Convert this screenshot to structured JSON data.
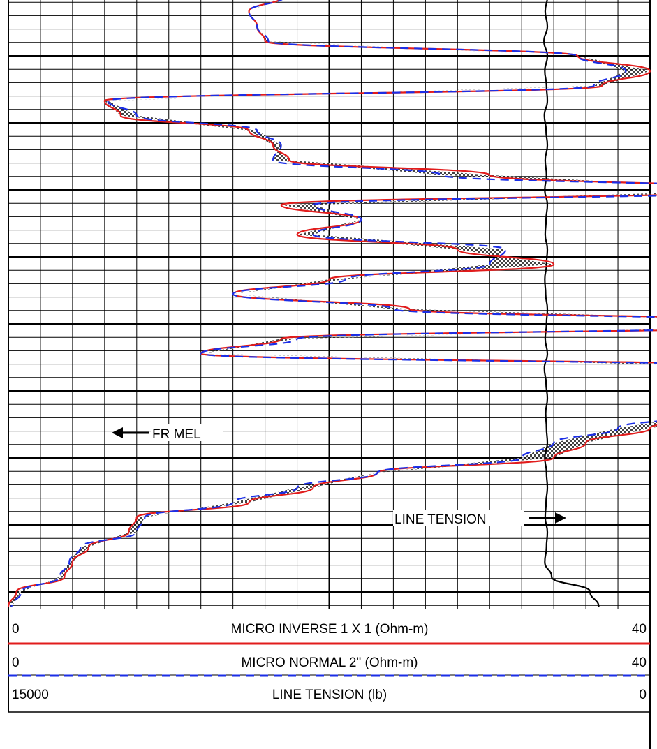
{
  "colors": {
    "grid": "#000000",
    "inverse": "#e11c1c",
    "normal": "#1b2ee6",
    "tension": "#000000",
    "fill_dark": "#222222",
    "fill_light": "#ffffff"
  },
  "annotations": {
    "fr_mel": "FR MEL",
    "line_tension": "LINE TENSION"
  },
  "header": {
    "tracks": [
      {
        "left": "0",
        "label": "MICRO INVERSE 1 X 1 (Ohm-m)",
        "right": "40",
        "line": "solid",
        "color": "#e11c1c"
      },
      {
        "left": "0",
        "label": "MICRO NORMAL 2\" (Ohm-m)",
        "right": "40",
        "line": "dashed",
        "color": "#1b2ee6"
      },
      {
        "left": "15000",
        "label": "LINE TENSION (lb)",
        "right": "0",
        "line": "none",
        "color": "#000000"
      }
    ]
  },
  "chart_data": {
    "type": "line",
    "title": "",
    "xlabel": "MICRO INVERSE 1 X 1 (Ohm-m) / MICRO NORMAL 2\" (Ohm-m)",
    "ylabel": "",
    "xlim": [
      0,
      40
    ],
    "x_minor_step": 2,
    "x_major_step": 20,
    "y_samples": 42,
    "grid": true,
    "series": [
      {
        "name": "MICRO INVERSE 1 X 1 (Ohm-m)",
        "scale": [
          0,
          40
        ],
        "style": "solid",
        "values": [
          17.1,
          15,
          15.5,
          16,
          35.5,
          40,
          37,
          6,
          7,
          15,
          16.5,
          17.5,
          30,
          47,
          17,
          22,
          18,
          28,
          34,
          20,
          14,
          25,
          55,
          17,
          12,
          54,
          58,
          52,
          47,
          40,
          36,
          34,
          23,
          19,
          15,
          8,
          7.5,
          5,
          4,
          3.5,
          0.5,
          0
        ]
      },
      {
        "name": "MICRO NORMAL 2\" (Ohm-m)",
        "scale": [
          0,
          40
        ],
        "style": "dashed",
        "values": [
          17.2,
          15,
          15.5,
          16.2,
          35.5,
          38.5,
          36.5,
          6.2,
          8,
          15.5,
          17,
          16.5,
          27,
          49,
          19,
          22,
          19,
          31,
          30,
          21,
          14,
          24,
          53,
          18,
          12,
          51,
          55,
          49,
          44,
          38,
          34,
          32,
          23,
          18,
          14,
          8.5,
          8,
          4.5,
          3.8,
          3.2,
          0.8,
          0.2
        ]
      },
      {
        "name": "LINE TENSION (lb)",
        "scale": [
          15000,
          0
        ],
        "style": "solid",
        "values": [
          2400,
          2450,
          2400,
          2480,
          2400,
          2460,
          2420,
          2400,
          2470,
          2430,
          2400,
          2450,
          2420,
          2460,
          2400,
          2430,
          2450,
          2400,
          2420,
          2460,
          2440,
          2400,
          2420,
          2450,
          2400,
          2470,
          2430,
          2400,
          2440,
          2420,
          2400,
          2460,
          2420,
          2400,
          2430,
          2450,
          2400,
          2420,
          2460,
          2300,
          1400,
          1200
        ]
      }
    ]
  }
}
